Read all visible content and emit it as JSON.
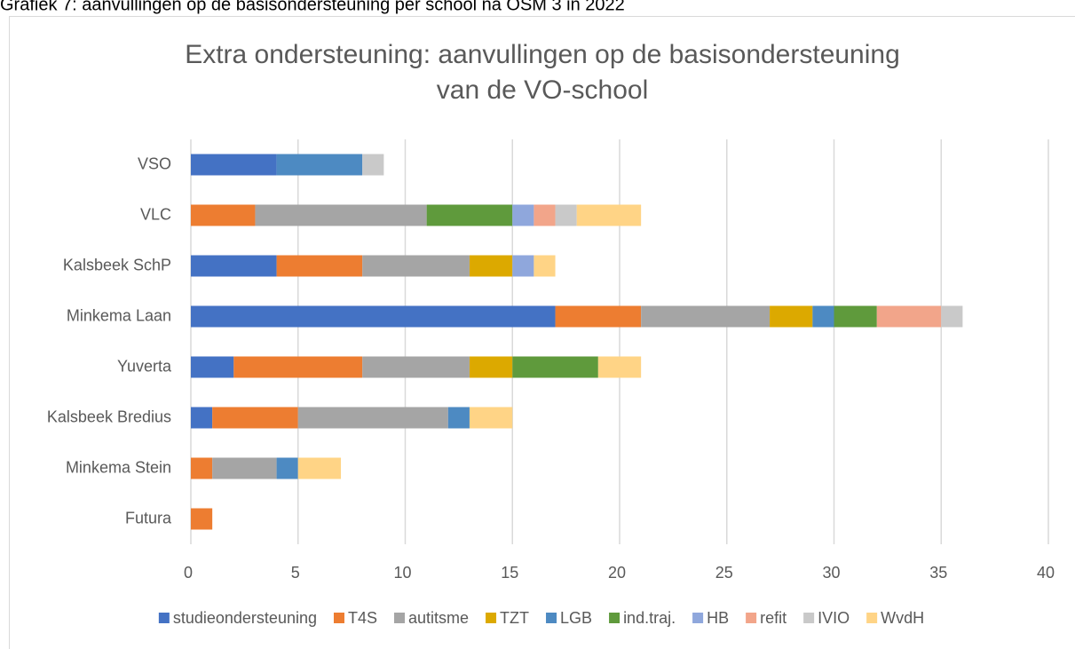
{
  "caption": "Grafiek 7: aanvullingen op de basisondersteuning per school na OSM 3 in 2022",
  "chart_data": {
    "type": "stacked_barh",
    "title": [
      "Extra ondersteuning: aanvullingen op de basisondersteuning",
      "van de VO-school"
    ],
    "categories": [
      "VSO",
      "VLC",
      "Kalsbeek SchP",
      "Minkema Laan",
      "Yuverta",
      "Kalsbeek Bredius",
      "Minkema Stein",
      "Futura"
    ],
    "series": [
      {
        "name": "studieondersteuning",
        "color": "#4472c4",
        "values": [
          4,
          0,
          4,
          17,
          2,
          1,
          0,
          0
        ]
      },
      {
        "name": "T4S",
        "color": "#ed7d31",
        "values": [
          0,
          3,
          4,
          4,
          6,
          4,
          1,
          1
        ]
      },
      {
        "name": "autitsme",
        "color": "#a5a5a5",
        "values": [
          0,
          8,
          5,
          6,
          5,
          7,
          3,
          0
        ]
      },
      {
        "name": "TZT",
        "color": "#dca900",
        "values": [
          0,
          0,
          2,
          2,
          2,
          0,
          0,
          0
        ]
      },
      {
        "name": "LGB",
        "color": "#4d8ac2",
        "values": [
          4,
          0,
          0,
          1,
          0,
          1,
          1,
          0
        ]
      },
      {
        "name": "ind.traj.",
        "color": "#5f9a3c",
        "values": [
          0,
          4,
          0,
          2,
          4,
          0,
          0,
          0
        ]
      },
      {
        "name": "HB",
        "color": "#8fa7dc",
        "values": [
          0,
          1,
          1,
          0,
          0,
          0,
          0,
          0
        ]
      },
      {
        "name": "refit",
        "color": "#f2a58a",
        "values": [
          0,
          1,
          0,
          3,
          0,
          0,
          0,
          0
        ]
      },
      {
        "name": "IVIO",
        "color": "#c9c9c9",
        "values": [
          1,
          1,
          0,
          1,
          0,
          0,
          0,
          0
        ]
      },
      {
        "name": "WvdH",
        "color": "#ffd486",
        "values": [
          0,
          3,
          1,
          0,
          2,
          2,
          2,
          0
        ]
      }
    ],
    "xlim": [
      0,
      40
    ],
    "xticks": [
      0,
      5,
      10,
      15,
      20,
      25,
      30,
      35,
      40
    ],
    "grid": true,
    "legend": "bottom"
  }
}
